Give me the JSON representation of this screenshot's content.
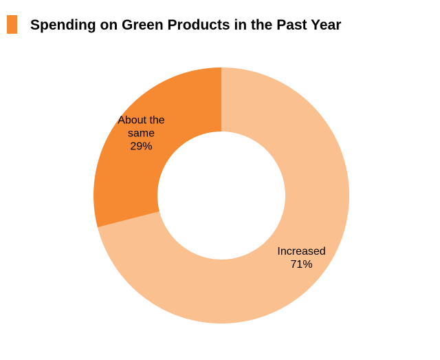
{
  "title": "Spending on Green Products in the Past Year",
  "colors": {
    "marker": "#F58A32",
    "background": "#FFFFFF",
    "text": "#000000"
  },
  "chart_data": {
    "type": "pie",
    "variant": "donut",
    "title": "Spending on Green Products in the Past Year",
    "start": "12 o'clock",
    "direction": "clockwise",
    "slices": [
      {
        "label": "Increased",
        "value": 71,
        "display": "71%",
        "color": "#FAC090",
        "label_lines": [
          "Increased",
          "71%"
        ]
      },
      {
        "label": "About the same",
        "value": 29,
        "display": "29%",
        "color": "#F58A32",
        "label_lines": [
          "About the",
          "same",
          "29%"
        ]
      }
    ]
  }
}
